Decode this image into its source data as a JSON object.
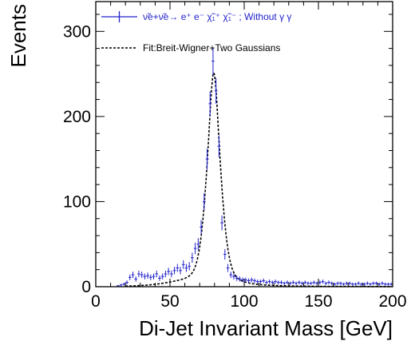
{
  "chart_data": {
    "type": "scatter",
    "xlabel": "Di-Jet Invariant Mass [GeV]",
    "ylabel": "Events",
    "xlim": [
      0,
      200
    ],
    "ylim": [
      0,
      335
    ],
    "xticks": [
      0,
      50,
      100,
      150,
      200
    ],
    "yticks": [
      0,
      100,
      200,
      300
    ],
    "grid": false,
    "legend_position": "top-left",
    "series": [
      {
        "name": "ν̃e+ν̃e→ e⁺ e⁻ χ̃₁⁺ χ̃₁⁻ ; Without γ γ",
        "style": "points-with-error-bars",
        "color": "#2222cc",
        "x": [
          13,
          15,
          17,
          19,
          21,
          23,
          25,
          27,
          29,
          31,
          33,
          35,
          37,
          39,
          41,
          43,
          45,
          47,
          49,
          51,
          53,
          55,
          57,
          59,
          61,
          63,
          65,
          67,
          69,
          71,
          73,
          75,
          77,
          79,
          81,
          83,
          85,
          87,
          89,
          91,
          93,
          95,
          97,
          99,
          101,
          103,
          105,
          107,
          109,
          111,
          113,
          115,
          117,
          119,
          121,
          123,
          125,
          127,
          129,
          131,
          133,
          135,
          137,
          139,
          141,
          143,
          145,
          147,
          149,
          151,
          153,
          155,
          157,
          159,
          161,
          163,
          165,
          167,
          169,
          171,
          173,
          175,
          177,
          179,
          181,
          183,
          185,
          187,
          189,
          191,
          193,
          195,
          197,
          199
        ],
        "y": [
          0,
          1,
          2,
          3,
          5,
          11,
          14,
          9,
          15,
          14,
          12,
          13,
          11,
          12,
          15,
          10,
          12,
          15,
          18,
          15,
          19,
          22,
          19,
          26,
          22,
          24,
          34,
          45,
          50,
          70,
          100,
          150,
          215,
          265,
          230,
          165,
          75,
          38,
          22,
          14,
          12,
          10,
          9,
          8,
          8,
          7,
          8,
          7,
          6,
          6,
          7,
          5,
          6,
          5,
          6,
          5,
          5,
          4,
          5,
          4,
          5,
          4,
          5,
          4,
          5,
          4,
          4,
          5,
          4,
          5,
          6,
          4,
          5,
          4,
          3,
          4,
          4,
          3,
          4,
          4,
          3,
          3,
          4,
          3,
          3,
          4,
          3,
          4,
          4,
          3,
          4,
          3,
          3,
          3
        ]
      },
      {
        "name": "Fit:Breit-Wigner+Two Gaussians",
        "style": "dashed-line",
        "color": "#000000"
      }
    ]
  }
}
